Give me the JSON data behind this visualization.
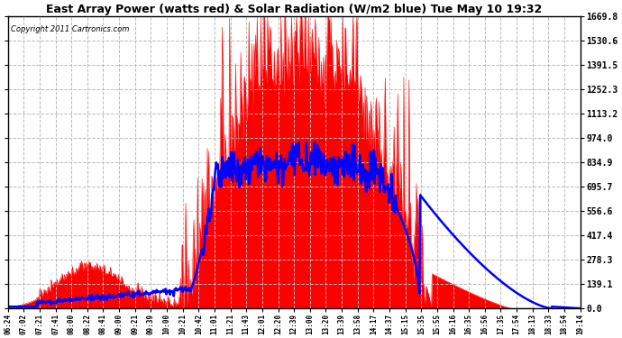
{
  "title": "East Array Power (watts red) & Solar Radiation (W/m2 blue) Tue May 10 19:32",
  "copyright": "Copyright 2011 Cartronics.com",
  "ymax": 1669.8,
  "yticks": [
    0.0,
    139.1,
    278.3,
    417.4,
    556.6,
    695.7,
    834.9,
    974.0,
    1113.2,
    1252.3,
    1391.5,
    1530.6,
    1669.8
  ],
  "xtick_labels": [
    "06:24",
    "07:02",
    "07:21",
    "07:41",
    "08:00",
    "08:22",
    "08:41",
    "09:00",
    "09:21",
    "09:39",
    "10:00",
    "10:21",
    "10:42",
    "11:01",
    "11:21",
    "11:43",
    "12:01",
    "12:20",
    "12:39",
    "13:00",
    "13:20",
    "13:39",
    "13:58",
    "14:17",
    "14:37",
    "15:15",
    "15:35",
    "15:55",
    "16:16",
    "16:35",
    "16:56",
    "17:35",
    "17:54",
    "18:13",
    "18:33",
    "18:54",
    "19:14"
  ],
  "bg_color": "#ffffff",
  "plot_bg_color": "#ffffff",
  "grid_color": "#bbbbbb",
  "red_color": "#ff0000",
  "blue_color": "#0000ff",
  "figsize": [
    6.9,
    3.75
  ],
  "dpi": 100
}
